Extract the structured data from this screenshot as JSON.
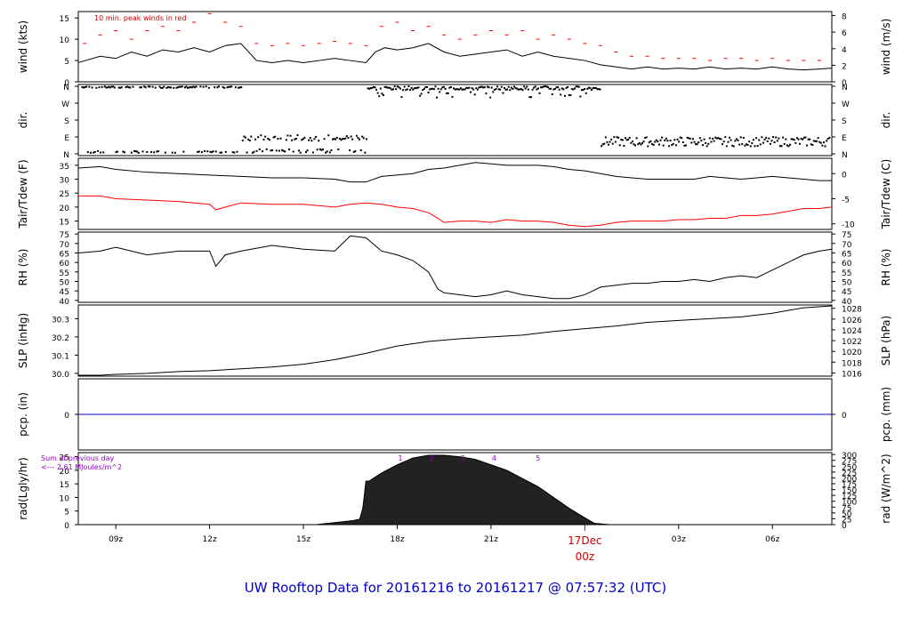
{
  "title": "UW Rooftop Data for 20161216  to  20161217 @ 07:57:32  (UTC)",
  "colors": {
    "black": "#000000",
    "red": "#ff0000",
    "blue": "#0000cc",
    "purple": "#9900cc",
    "title": "#0000cc"
  },
  "chart_data": [
    {
      "id": "wind",
      "type": "line",
      "ylabel_left": "wind (kts)",
      "ylabel_right": "wind (m/s)",
      "yticks_left": [
        0,
        5,
        10,
        15
      ],
      "yticks_right": [
        0,
        2,
        4,
        6,
        8
      ],
      "annotation": "10 min. peak winds in red",
      "ylim": [
        0,
        16.5
      ],
      "series": [
        {
          "name": "wind speed",
          "color": "#000000",
          "x": [
            7.8,
            8.5,
            9,
            9.5,
            10,
            10.5,
            11,
            11.5,
            12,
            12.5,
            13,
            13.5,
            14,
            14.5,
            15,
            15.5,
            16,
            16.5,
            17,
            17.3,
            17.6,
            18,
            18.5,
            19,
            19.5,
            20,
            20.5,
            21,
            21.5,
            22,
            22.5,
            23,
            23.5,
            24,
            24.5,
            25,
            25.5,
            26,
            26.5,
            27,
            27.5,
            28,
            28.5,
            29,
            29.5,
            30,
            30.5,
            31,
            31.5,
            31.9
          ],
          "y": [
            4.5,
            6,
            5.5,
            7,
            6,
            7.5,
            7,
            8,
            7,
            8.5,
            9,
            5,
            4.5,
            5,
            4.5,
            5,
            5.5,
            5,
            4.5,
            7,
            8,
            7.5,
            8,
            9,
            7,
            6,
            6.5,
            7,
            7.5,
            6,
            7,
            6,
            5.5,
            5,
            4,
            3.5,
            3,
            3.5,
            3,
            3.2,
            3,
            3.5,
            3,
            3.2,
            3,
            3.5,
            3,
            2.8,
            3,
            3.2
          ]
        },
        {
          "name": "10 min. peak winds",
          "color": "#ff0000",
          "x": [
            8,
            8.5,
            9,
            9.5,
            10,
            10.5,
            11,
            11.5,
            12,
            12.5,
            13,
            13.5,
            14,
            14.5,
            15,
            15.5,
            16,
            16.5,
            17,
            17.5,
            18,
            18.5,
            19,
            19.5,
            20,
            20.5,
            21,
            21.5,
            22,
            22.5,
            23,
            23.5,
            24,
            24.5,
            25,
            25.5,
            26,
            26.5,
            27,
            27.5,
            28,
            28.5,
            29,
            29.5,
            30,
            30.5,
            31,
            31.5
          ],
          "y": [
            9,
            11,
            12,
            10,
            12,
            13,
            12,
            14,
            16,
            14,
            13,
            9,
            8.5,
            9,
            8.5,
            9,
            9.5,
            9,
            8.5,
            13,
            14,
            12,
            13,
            11,
            10,
            11,
            12,
            11,
            12,
            10,
            11,
            10,
            9,
            8.5,
            7,
            6,
            6,
            5.5,
            5.5,
            5.5,
            5,
            5.5,
            5.5,
            5,
            5.5,
            5,
            5,
            5
          ]
        }
      ]
    },
    {
      "id": "dir",
      "type": "scatter",
      "ylabel_left": "dir.",
      "ylabel_right": "dir.",
      "yticks_labels": [
        "N",
        "E",
        "S",
        "W",
        "N"
      ],
      "yticks_values": [
        0,
        90,
        180,
        270,
        360
      ]
    },
    {
      "id": "temp",
      "type": "line",
      "ylabel_left": "Tair/Tdew (F)",
      "ylabel_right": "Tair/Tdew (C)",
      "yticks_left": [
        15,
        20,
        25,
        30,
        35
      ],
      "yticks_right": [
        -10,
        -5,
        0
      ],
      "ylim": [
        12,
        37.5
      ],
      "series": [
        {
          "name": "Tair",
          "color": "#000000",
          "x": [
            7.8,
            8.5,
            9,
            10,
            11,
            12,
            13,
            14,
            15,
            16,
            16.5,
            17,
            17.5,
            18,
            18.5,
            19,
            19.5,
            20,
            20.5,
            21,
            21.5,
            22,
            22.5,
            23,
            23.5,
            24,
            24.5,
            25,
            25.5,
            26,
            26.5,
            27,
            27.5,
            28,
            28.5,
            29,
            29.5,
            30,
            30.5,
            31,
            31.5,
            31.9
          ],
          "y": [
            34,
            34.5,
            33.5,
            32.5,
            32,
            31.5,
            31,
            30.5,
            30.5,
            30,
            29,
            29,
            31,
            31.5,
            32,
            33.5,
            34,
            35,
            36,
            35.5,
            35,
            35,
            35,
            34.5,
            33.5,
            33,
            32,
            31,
            30.5,
            30,
            30,
            30,
            30,
            31,
            30.5,
            30,
            30.5,
            31,
            30.5,
            30,
            29.5,
            29.5
          ]
        },
        {
          "name": "Tdew",
          "color": "#ff0000",
          "x": [
            7.8,
            8.5,
            9,
            10,
            11,
            12,
            12.2,
            12.5,
            13,
            14,
            15,
            16,
            16.5,
            17,
            17.5,
            18,
            18.5,
            19,
            19.3,
            19.5,
            20,
            20.5,
            21,
            21.5,
            22,
            22.5,
            23,
            23.5,
            24,
            24.5,
            25,
            25.5,
            26,
            26.5,
            27,
            27.5,
            28,
            28.5,
            29,
            29.5,
            30,
            30.5,
            31,
            31.5,
            31.9
          ],
          "y": [
            24,
            24,
            23,
            22.5,
            22,
            21,
            19,
            20,
            21.5,
            21,
            21,
            20,
            21,
            21.5,
            21,
            20,
            19.5,
            18,
            16,
            14.5,
            15,
            15,
            14.5,
            15.5,
            15,
            15,
            14.5,
            13.5,
            13,
            13.5,
            14.5,
            15,
            15,
            15,
            15.5,
            15.5,
            16,
            16,
            17,
            17,
            17.5,
            18.5,
            19.5,
            19.5,
            20
          ]
        }
      ]
    },
    {
      "id": "rh",
      "type": "line",
      "ylabel_left": "RH (%)",
      "ylabel_right": "RH (%)",
      "yticks": [
        40,
        45,
        50,
        55,
        60,
        65,
        70,
        75
      ],
      "ylim": [
        39,
        76
      ],
      "series": [
        {
          "name": "RH",
          "color": "#000000",
          "x": [
            7.8,
            8.5,
            9,
            10,
            11,
            12,
            12.2,
            12.5,
            13,
            14,
            15,
            16,
            16.5,
            17,
            17.5,
            18,
            18.5,
            19,
            19.3,
            19.5,
            20,
            20.5,
            21,
            21.5,
            22,
            22.5,
            23,
            23.5,
            24,
            24.5,
            25,
            25.5,
            26,
            26.5,
            27,
            27.5,
            28,
            28.5,
            29,
            29.5,
            30,
            30.5,
            31,
            31.5,
            31.9
          ],
          "y": [
            65,
            66,
            68,
            64,
            66,
            66,
            58,
            64,
            66,
            69,
            67,
            66,
            74,
            73,
            66,
            64,
            61,
            55,
            46,
            44,
            43,
            42,
            43,
            45,
            43,
            42,
            41,
            41,
            43,
            47,
            48,
            49,
            49,
            50,
            50,
            51,
            50,
            52,
            53,
            52,
            56,
            60,
            64,
            66,
            67
          ]
        }
      ]
    },
    {
      "id": "slp",
      "type": "line",
      "ylabel_left": "SLP (inHg)",
      "ylabel_right": "SLP (hPa)",
      "yticks_left": [
        30.0,
        30.1,
        30.2,
        30.3
      ],
      "yticks_left_labels": [
        "30.0",
        "30.1",
        "30.2",
        "30.3"
      ],
      "yticks_right": [
        1016,
        1018,
        1020,
        1022,
        1024,
        1026,
        1028
      ],
      "ylim": [
        29.985,
        30.375
      ],
      "series": [
        {
          "name": "SLP",
          "color": "#000000",
          "x": [
            7.8,
            8.5,
            9,
            10,
            11,
            12,
            13,
            14,
            15,
            16,
            17,
            18,
            19,
            20,
            21,
            22,
            23,
            24,
            25,
            26,
            27,
            28,
            29,
            30,
            31,
            31.9
          ],
          "y": [
            29.99,
            29.99,
            29.995,
            30.0,
            30.01,
            30.015,
            30.025,
            30.035,
            30.05,
            30.075,
            30.11,
            30.15,
            30.175,
            30.19,
            30.2,
            30.21,
            30.23,
            30.245,
            30.26,
            30.28,
            30.29,
            30.3,
            30.31,
            30.33,
            30.36,
            30.37
          ]
        }
      ]
    },
    {
      "id": "pcp",
      "type": "line",
      "ylabel_left": "pcp. (in)",
      "ylabel_right": "pcp. (mm)",
      "yticks_left": [
        0
      ],
      "yticks_right": [
        0
      ],
      "ylim": [
        -1,
        1
      ],
      "series": [
        {
          "name": "pcp",
          "color": "#0000cc",
          "x": [
            7.8,
            31.9
          ],
          "y": [
            0,
            0
          ]
        }
      ]
    },
    {
      "id": "rad",
      "type": "area",
      "ylabel_left": "rad(Lgly/hr)",
      "ylabel_right": "rad (W/m^2)",
      "yticks_left": [
        0,
        5,
        10,
        15,
        20,
        25
      ],
      "yticks_right": [
        0,
        25,
        50,
        75,
        100,
        125,
        150,
        175,
        200,
        225,
        250,
        275,
        300
      ],
      "ylim": [
        0,
        26.5
      ],
      "annotation_lines": [
        "Sum of previous day",
        "<--- 2.61 MJoules/m^2"
      ],
      "hour_marks": [
        "1",
        "2",
        "3",
        "4",
        "5"
      ],
      "hour_marks_x": [
        18.1,
        19.1,
        20.1,
        21.1,
        22.5
      ],
      "series": [
        {
          "name": "radiation",
          "color": "#000000",
          "x": [
            15.4,
            15.8,
            16.2,
            16.6,
            16.8,
            16.9,
            17.0,
            17.1,
            17.5,
            18,
            18.5,
            19,
            19.5,
            20,
            20.5,
            21,
            21.5,
            22,
            22.5,
            23,
            23.5,
            24,
            24.3,
            24.8
          ],
          "y": [
            0,
            0.5,
            1,
            1.5,
            2,
            6,
            16,
            16,
            19,
            22,
            24.5,
            25.5,
            25.5,
            25,
            24,
            22,
            20,
            17,
            14,
            10,
            6,
            2.5,
            0.5,
            0
          ]
        }
      ]
    }
  ],
  "x_axis": {
    "xlim": [
      7.8,
      31.9
    ],
    "ticks": [
      9,
      12,
      15,
      18,
      21,
      27,
      30
    ],
    "tick_labels": [
      "09z",
      "12z",
      "15z",
      "18z",
      "21z",
      "03z",
      "06z"
    ],
    "date_marker_x": 24,
    "date_marker_label": "17Dec",
    "date_marker_sublabel": "00z"
  }
}
